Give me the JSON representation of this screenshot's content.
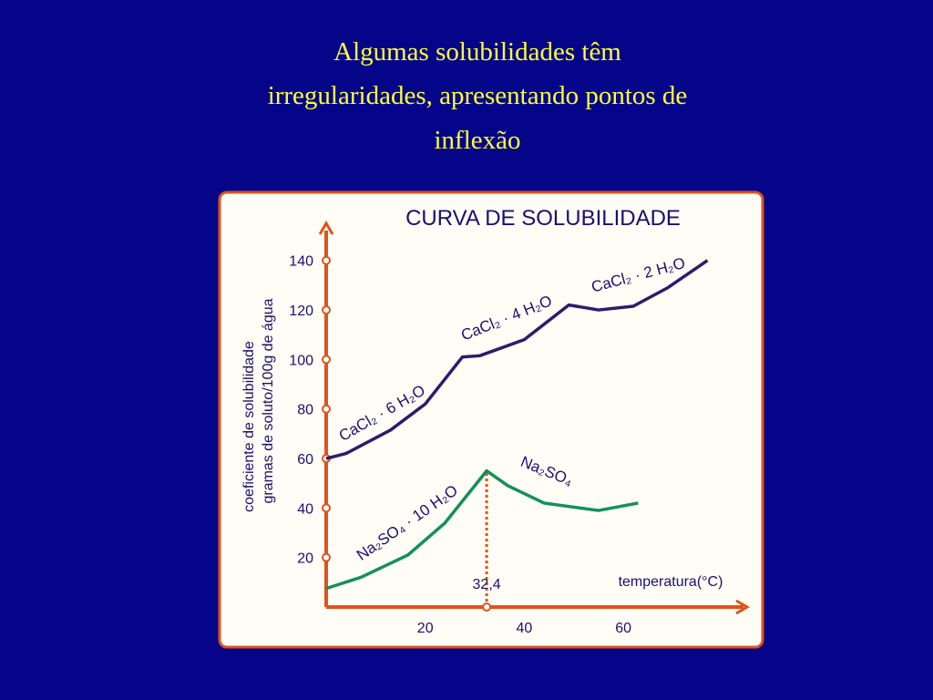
{
  "slide_title": [
    "Algumas solubilidades têm",
    "irregularidades, apresentando pontos de",
    "inflexão"
  ],
  "chart_data": {
    "type": "line",
    "title": "CURVA DE SOLUBILIDADE",
    "y_label": [
      "coeficiente de solubilidade",
      "gramas de soluto/100g de água"
    ],
    "x_label": "temperatura(°C)",
    "xlim": [
      0,
      85
    ],
    "ylim": [
      0,
      155
    ],
    "xticks": [
      20,
      40,
      60
    ],
    "yticks": [
      20,
      40,
      60,
      80,
      100,
      120,
      140
    ],
    "axis_color": "#e0521a",
    "series": [
      {
        "color": "#2e1a6e",
        "x": [
          0,
          4,
          13,
          20,
          27.5,
          31,
          40,
          49,
          55,
          62,
          69,
          77
        ],
        "values": [
          60,
          62,
          71.5,
          82,
          101,
          101.5,
          108,
          122,
          120,
          121.5,
          129,
          140
        ]
      },
      {
        "color": "#12905a",
        "x": [
          0,
          7,
          16.5,
          24,
          32.4,
          36.7,
          44,
          55,
          63
        ],
        "values": [
          7.5,
          12,
          21,
          34,
          55,
          49,
          42,
          39,
          42
        ]
      }
    ],
    "annotations": [
      "CaCl₂ · 6 H₂O",
      "CaCl₂ · 4 H₂O",
      "CaCl₂ · 2 H₂O",
      "Na₂SO₄ · 10 H₂O",
      "Na₂SO₄"
    ],
    "marker": {
      "value": 32.4,
      "label": "32,4"
    }
  }
}
